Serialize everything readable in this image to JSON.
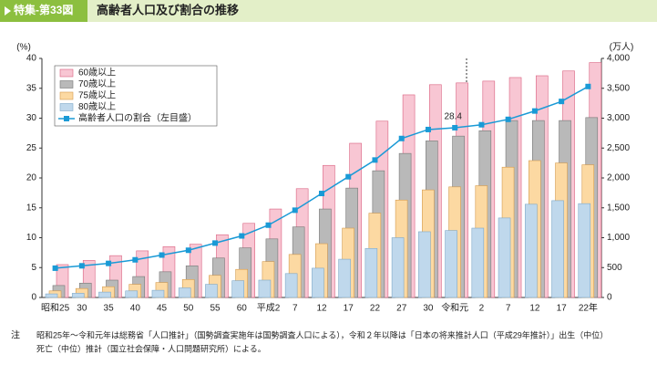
{
  "header": {
    "label": "特集-第33図",
    "title": "高齢者人口及び割合の推移"
  },
  "chart_data": {
    "type": "bar",
    "y_label": "(%)",
    "y2_label": "(万人)",
    "categories": [
      "昭和25",
      "30",
      "35",
      "40",
      "45",
      "50",
      "55",
      "60",
      "平成2",
      "7",
      "12",
      "17",
      "22",
      "27",
      "30",
      "令和元",
      "2",
      "7",
      "12",
      "17",
      "22年"
    ],
    "ylim": [
      0,
      40
    ],
    "yticks": [
      0,
      5,
      10,
      15,
      20,
      25,
      30,
      35,
      40
    ],
    "y2lim": [
      0,
      4000
    ],
    "y2ticks": [
      0,
      500,
      {
        "value": 1000,
        "label": "1,000"
      },
      {
        "value": 1500,
        "label": "1,500"
      },
      {
        "value": 2000,
        "label": "2,000"
      },
      {
        "value": 2500,
        "label": "2,500"
      },
      {
        "value": 3000,
        "label": "3,000"
      },
      {
        "value": 3500,
        "label": "3,500"
      },
      {
        "value": 4000,
        "label": "4,000"
      }
    ],
    "series": [
      {
        "name": "60歳以上",
        "type": "bar",
        "axis": "y2",
        "color": "#f8c6d3",
        "values": [
          550,
          620,
          700,
          780,
          850,
          890,
          1050,
          1240,
          1480,
          1820,
          2210,
          2580,
          2950,
          3390,
          3560,
          3590,
          3620,
          3680,
          3710,
          3790,
          3930
        ]
      },
      {
        "name": "70歳以上",
        "type": "bar",
        "axis": "y2",
        "color": "#b9b9b9",
        "values": [
          200,
          240,
          290,
          350,
          430,
          530,
          660,
          830,
          980,
          1180,
          1480,
          1830,
          2120,
          2410,
          2620,
          2700,
          2790,
          2960,
          2960,
          2960,
          3010
        ]
      },
      {
        "name": "75歳以上",
        "type": "bar",
        "axis": "y2",
        "color": "#fcd9a2",
        "values": [
          110,
          150,
          180,
          220,
          250,
          300,
          370,
          470,
          600,
          720,
          900,
          1160,
          1410,
          1630,
          1800,
          1850,
          1870,
          2180,
          2290,
          2250,
          2220
        ]
      },
      {
        "name": "80歳以上",
        "type": "bar",
        "axis": "y2",
        "color": "#bfd8ec",
        "values": [
          60,
          70,
          90,
          110,
          120,
          160,
          220,
          280,
          290,
          400,
          490,
          640,
          820,
          1000,
          1100,
          1120,
          1160,
          1330,
          1560,
          1620,
          1570
        ]
      },
      {
        "name": "高齢者人口の割合（左目盛）",
        "type": "line",
        "axis": "y",
        "color": "#1a9ad6",
        "values": [
          4.9,
          5.3,
          5.7,
          6.3,
          7.1,
          7.9,
          9.1,
          10.3,
          12.1,
          14.6,
          17.4,
          20.2,
          23.0,
          26.6,
          28.1,
          28.4,
          28.9,
          29.8,
          31.2,
          32.8,
          35.3
        ],
        "value_labels": [
          null,
          null,
          null,
          null,
          null,
          null,
          null,
          null,
          null,
          null,
          null,
          null,
          null,
          null,
          null,
          "28.4",
          null,
          null,
          null,
          null,
          null
        ]
      }
    ]
  },
  "note": {
    "mark": "注",
    "lines": [
      "昭和25年～令和元年は総務省「人口推計」（国勢調査実施年は国勢調査人口による），令和２年以降は「日本の将来推計人口（平成29年推計）」出生（中位）",
      "死亡（中位）推計（国立社会保障・人口問題研究所）による。"
    ]
  }
}
